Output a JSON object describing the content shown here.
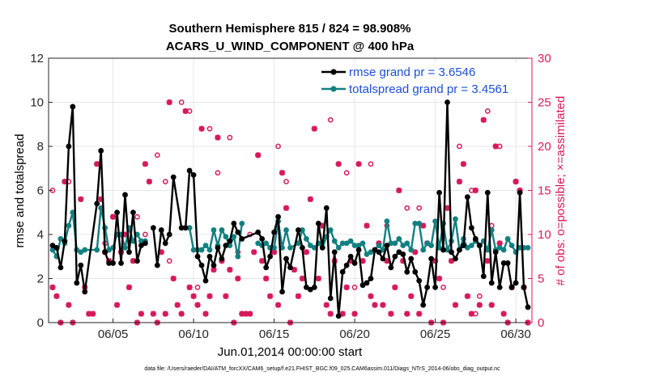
{
  "chart_data": {
    "type": "line",
    "title": "Southern Hemisphere 815 / 824 = 98.908%",
    "subtitle": "ACARS_U_WIND_COMPONENT @ 400 hPa",
    "xlabel": "Jun.01,2014 00:00:00 start",
    "ylabel": "rmse and totalspread",
    "y2label": "# of obs: o=possible; ×=assimilated",
    "xlim": [
      1,
      31
    ],
    "ylim": [
      0,
      12
    ],
    "y2lim": [
      0,
      30
    ],
    "x_ticks": [
      5,
      10,
      15,
      20,
      25,
      30
    ],
    "x_tick_labels": [
      "06/05",
      "06/10",
      "06/15",
      "06/20",
      "06/25",
      "06/30"
    ],
    "y_ticks": [
      "0",
      "2",
      "4",
      "6",
      "8",
      "10",
      "12"
    ],
    "y2_ticks": [
      "0",
      "5",
      "10",
      "15",
      "20",
      "25",
      "30"
    ],
    "legend": {
      "placement": "top-right",
      "entries": [
        "rmse grand pr = 3.6546",
        "totalspread grand pr = 3.4561"
      ]
    },
    "footnote": "data file: /Users/raeder/DAI/ATM_forcXX/CAM6_setup/f.e21.FHIST_BGC.f09_025.CAM6assim.011/Diags_NTrS_2014-06/obs_diag_output.nc",
    "colors": {
      "rmse": "#000000",
      "spread": "#138080",
      "obs": "#d6195c",
      "legend_text": "#1a4fd6"
    },
    "series": [
      {
        "name": "rmse",
        "x": [
          1.25,
          1.5,
          1.75,
          2.0,
          2.25,
          2.5,
          2.75,
          3.0,
          3.25,
          4.0,
          4.25,
          4.5,
          4.75,
          5.0,
          5.25,
          5.5,
          5.75,
          6.0,
          6.25,
          6.5,
          6.75,
          7.0,
          null,
          7.5,
          7.75,
          8.0,
          8.25,
          8.5,
          8.75,
          9.25,
          9.5,
          9.75,
          10.0,
          10.25,
          10.5,
          10.75,
          11.0,
          11.25,
          11.5,
          11.75,
          12.0,
          12.25,
          12.5,
          12.75,
          13.0,
          14.0,
          14.25,
          14.5,
          14.75,
          15.0,
          15.25,
          15.5,
          15.75,
          16.0,
          16.5,
          16.75,
          17.0,
          17.25,
          17.5,
          17.75,
          18.0,
          18.25,
          18.5,
          18.75,
          19.0,
          19.25,
          19.5,
          19.75,
          20.0,
          20.25,
          20.5,
          20.75,
          21.0,
          21.25,
          21.5,
          21.75,
          22.0,
          22.25,
          22.5,
          22.75,
          23.0,
          23.25,
          23.5,
          23.75,
          24.0,
          24.25,
          24.5,
          24.75,
          25.0,
          25.25,
          25.5,
          25.75,
          26.0,
          26.25,
          26.5,
          26.75,
          27.0,
          27.25,
          27.5,
          27.75,
          28.0,
          28.25,
          28.5,
          28.75,
          29.0,
          29.25,
          29.5,
          29.75,
          30.0,
          30.25,
          30.5,
          30.75
        ],
        "values": [
          3.5,
          3.4,
          2.5,
          3.7,
          8.0,
          9.8,
          1.8,
          2.6,
          1.4,
          5.4,
          7.8,
          3.2,
          2.7,
          2.7,
          5.0,
          2.7,
          5.8,
          3.2,
          5.0,
          2.8,
          3.5,
          3.6,
          null,
          4.3,
          2.6,
          4.2,
          3.6,
          4.0,
          6.6,
          4.3,
          4.3,
          6.9,
          6.7,
          3.0,
          2.6,
          1.9,
          3.0,
          2.6,
          3.4,
          2.9,
          3.5,
          3.7,
          4.5,
          4.1,
          3.8,
          4.1,
          3.8,
          2.5,
          3.0,
          4.1,
          4.8,
          1.4,
          2.9,
          2.5,
          4.2,
          3.4,
          1.6,
          1.5,
          1.6,
          4.5,
          3.4,
          5.2,
          1.1,
          3.2,
          0.3,
          2.3,
          2.6,
          3.0,
          2.7,
          3.3,
          1.7,
          1.8,
          2.0,
          3.3,
          3.2,
          2.9,
          3.5,
          2.5,
          3.0,
          3.2,
          3.1,
          2.3,
          2.9,
          2.3,
          1.9,
          0.8,
          1.6,
          2.9,
          1.6,
          5.9,
          3.3,
          10.0,
          3.2,
          2.9,
          3.3,
          3.5,
          5.7,
          4.3,
          3.8,
          3.5,
          2.1,
          5.9,
          1.8,
          3.2,
          1.6,
          2.7,
          2.7,
          1.6,
          1.8,
          5.9,
          1.6,
          0.7
        ],
        "labels": []
      },
      {
        "name": "totalspread",
        "x": [
          1.25,
          1.5,
          1.75,
          2.0,
          2.25,
          2.5,
          2.75,
          3.0,
          3.25,
          4.0,
          4.25,
          4.5,
          4.75,
          5.0,
          5.25,
          5.5,
          5.75,
          6.0,
          6.25,
          6.5,
          6.75,
          7.0,
          null,
          9.75,
          10.0,
          10.25,
          10.5,
          10.75,
          11.0,
          11.25,
          11.5,
          11.75,
          12.0,
          12.25,
          12.5,
          12.75,
          13.0,
          null,
          14.0,
          14.25,
          14.5,
          14.75,
          15.0,
          15.25,
          15.5,
          15.75,
          16.0,
          16.5,
          16.75,
          17.0,
          17.25,
          17.5,
          17.75,
          18.0,
          18.25,
          18.5,
          18.75,
          19.0,
          19.25,
          19.5,
          19.75,
          20.0,
          20.25,
          20.5,
          20.75,
          21.0,
          21.25,
          21.5,
          21.75,
          22.0,
          22.25,
          22.5,
          22.75,
          23.0,
          23.25,
          23.5,
          23.75,
          24.0,
          24.25,
          24.5,
          24.75,
          25.0,
          25.25,
          25.5,
          25.75,
          26.0,
          26.25,
          26.5,
          26.75,
          27.0,
          27.25,
          27.5,
          27.75,
          28.0,
          28.25,
          28.5,
          28.75,
          29.0,
          29.25,
          29.5,
          29.75,
          30.0,
          30.25,
          30.5,
          30.75
        ],
        "values": [
          3.3,
          3.0,
          3.8,
          3.6,
          4.4,
          5.0,
          3.3,
          3.2,
          3.3,
          3.3,
          5.2,
          4.3,
          3.3,
          3.4,
          4.0,
          4.0,
          3.4,
          4.3,
          3.7,
          4.0,
          3.7,
          3.7,
          null,
          4.3,
          3.3,
          3.3,
          3.3,
          3.5,
          3.3,
          4.2,
          3.5,
          4.2,
          3.9,
          3.5,
          3.9,
          3.0,
          4.5,
          null,
          3.6,
          3.5,
          3.6,
          3.4,
          3.4,
          4.6,
          3.4,
          4.2,
          3.4,
          3.6,
          4.2,
          3.8,
          3.5,
          3.4,
          3.6,
          3.4,
          3.9,
          4.2,
          3.7,
          3.4,
          3.6,
          3.6,
          3.7,
          3.5,
          3.5,
          3.6,
          3.1,
          3.2,
          3.3,
          3.5,
          3.3,
          4.6,
          3.6,
          3.6,
          3.8,
          3.5,
          3.6,
          3.3,
          4.5,
          4.5,
          3.3,
          3.6,
          3.5,
          4.6,
          3.4,
          4.5,
          3.3,
          3.7,
          4.7,
          3.3,
          3.8,
          3.4,
          3.5,
          3.7,
          3.5,
          3.7,
          3.3,
          4.2,
          3.3,
          3.4,
          3.3,
          3.8,
          3.5,
          3.2,
          3.4,
          3.4,
          3.4
        ],
        "labels": []
      },
      {
        "name": "obs_possible",
        "axis": "right",
        "marker": "o",
        "x": [
          1.25,
          2.25,
          4.5,
          5.0,
          5.5,
          6.5,
          7.0,
          7.75,
          8.25,
          8.5,
          9.25,
          9.75,
          10.25,
          11.0,
          11.5,
          12.25,
          12.75,
          13.5,
          14.0,
          15.25,
          15.75,
          16.5,
          18.5,
          19.5,
          20.0,
          21.0,
          22.0,
          23.25,
          24.0,
          25.5,
          26.5,
          27.25,
          27.5,
          27.75,
          28.25,
          28.5,
          29.0,
          30.0,
          30.25
        ],
        "values": [
          15,
          16,
          9,
          12,
          8,
          12,
          10,
          19,
          16,
          7,
          25,
          24,
          4,
          22,
          17,
          21,
          8,
          10,
          19,
          20,
          16,
          9,
          23,
          17,
          4,
          18,
          11,
          13,
          13,
          4,
          20,
          15,
          1,
          3,
          24,
          11,
          20,
          16,
          15
        ],
        "labels": []
      },
      {
        "name": "obs_assimilated",
        "axis": "right",
        "marker": "x",
        "x": [
          1.25,
          1.5,
          1.75,
          2.0,
          2.25,
          2.5,
          3.0,
          3.25,
          3.5,
          3.75,
          4.0,
          4.25,
          4.5,
          4.75,
          5.0,
          5.25,
          5.5,
          5.75,
          6.0,
          6.25,
          6.5,
          6.75,
          7.0,
          7.25,
          7.5,
          7.75,
          8.0,
          8.25,
          8.5,
          8.75,
          9.0,
          9.25,
          9.5,
          9.75,
          10.0,
          10.25,
          10.5,
          10.75,
          11.0,
          11.25,
          11.5,
          11.75,
          12.0,
          12.25,
          12.5,
          12.75,
          13.0,
          13.25,
          13.5,
          13.75,
          14.0,
          14.25,
          14.5,
          14.75,
          15.0,
          15.25,
          15.5,
          15.75,
          16.0,
          16.25,
          16.5,
          16.75,
          17.0,
          17.25,
          17.5,
          17.75,
          18.0,
          18.25,
          18.5,
          18.75,
          19.0,
          19.25,
          19.5,
          19.75,
          20.0,
          20.25,
          20.5,
          20.75,
          21.0,
          21.25,
          21.5,
          21.75,
          22.0,
          22.25,
          22.5,
          22.75,
          23.0,
          23.25,
          23.5,
          23.75,
          24.0,
          24.25,
          24.5,
          24.75,
          25.0,
          25.25,
          25.5,
          25.75,
          26.0,
          26.25,
          26.5,
          26.75,
          27.0,
          27.25,
          27.5,
          27.75,
          28.0,
          28.25,
          28.5,
          28.75,
          29.0,
          29.25,
          29.5,
          29.75,
          30.0,
          30.25,
          30.5,
          30.75
        ],
        "values": [
          4,
          3,
          0,
          16,
          2,
          0,
          14,
          4,
          1,
          1,
          18,
          14,
          8,
          7,
          12,
          2,
          8,
          10,
          4,
          7,
          0,
          1,
          18,
          16,
          1,
          0,
          8,
          1,
          25,
          5,
          2,
          1,
          24,
          4,
          3,
          2,
          22,
          1,
          3,
          6,
          21,
          7,
          3,
          6,
          0,
          5,
          1,
          1,
          1,
          8,
          19,
          7,
          5,
          3,
          8,
          2,
          17,
          13,
          0,
          6,
          3,
          5,
          8,
          14,
          22,
          5,
          11,
          2,
          1,
          7,
          18,
          1,
          4,
          7,
          1,
          18,
          7,
          11,
          3,
          2,
          9,
          2,
          7,
          1,
          4,
          15,
          7,
          1,
          3,
          8,
          1,
          11,
          9,
          0,
          7,
          5,
          0,
          13,
          7,
          2,
          16,
          18,
          3,
          1,
          15,
          2,
          23,
          7,
          2,
          20,
          9,
          1,
          0,
          4,
          16,
          15,
          4,
          0
        ],
        "labels": []
      }
    ]
  }
}
